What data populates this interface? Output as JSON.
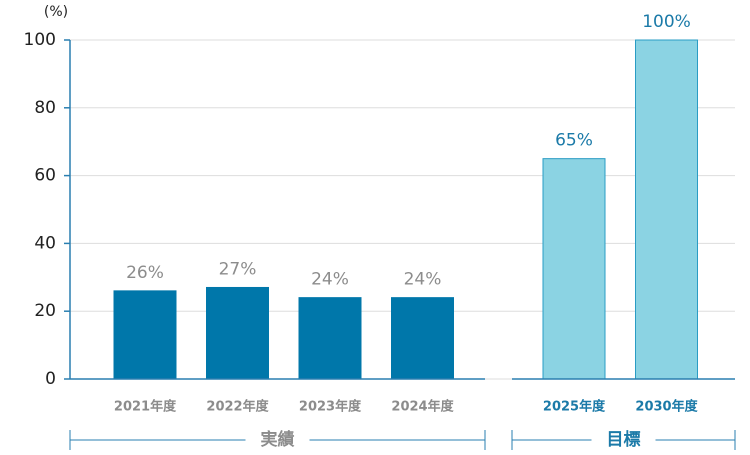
{
  "chart_data": {
    "type": "bar",
    "y_label": "(%)",
    "ylim": [
      0,
      100
    ],
    "yticks": [
      0,
      20,
      40,
      60,
      80,
      100
    ],
    "grid": true,
    "groups": [
      {
        "name": "実績",
        "color": "#0077aa",
        "stroke": "#0077aa",
        "label_color": "#8c8c8c",
        "categories": [
          "2021年度",
          "2022年度",
          "2023年度",
          "2024年度"
        ],
        "values": [
          26,
          27,
          24,
          24
        ],
        "value_labels": [
          "26%",
          "27%",
          "24%",
          "24%"
        ]
      },
      {
        "name": "目標",
        "color": "#8bd3e3",
        "stroke": "#2a9cc4",
        "label_color": "#1b7aa8",
        "categories": [
          "2025年度",
          "2030年度"
        ],
        "values": [
          65,
          100
        ],
        "value_labels": [
          "65%",
          "100%"
        ]
      }
    ]
  }
}
